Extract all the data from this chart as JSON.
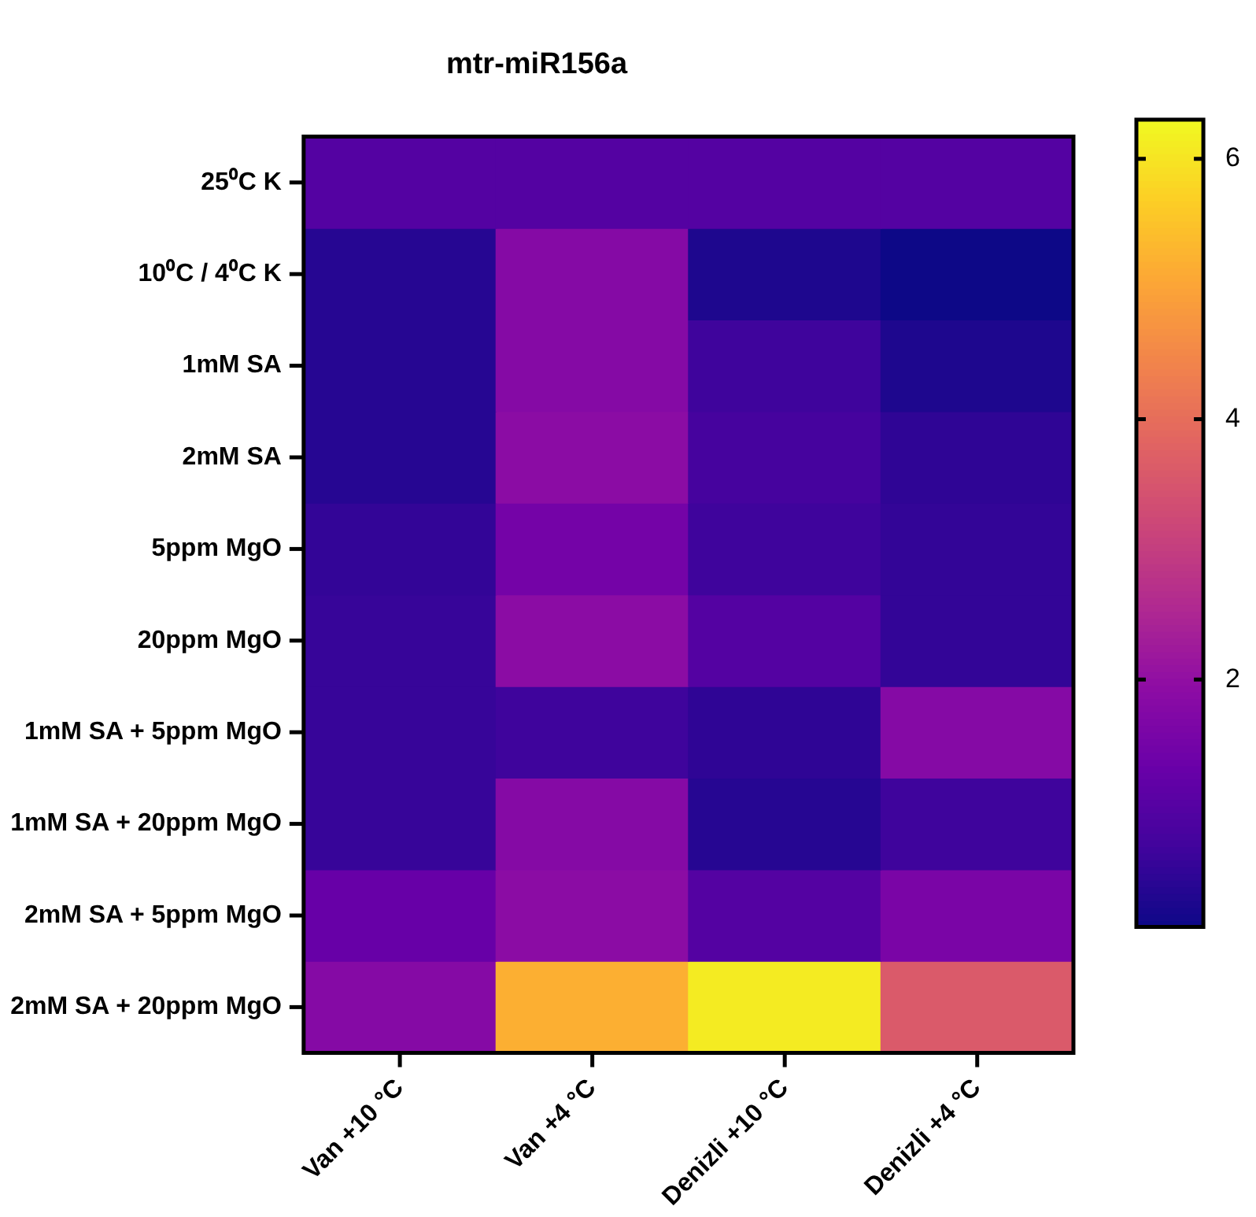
{
  "chart_data": {
    "type": "heatmap",
    "title": "mtr-miR156a",
    "categories": [
      "Van +10 °C",
      "Van +4 °C",
      "Denizli +10 °C",
      "Denizli +4 °C"
    ],
    "y_categories": [
      "25⁰C K",
      "10⁰C / 4⁰C K",
      "1mM SA",
      "2mM SA",
      "5ppm MgO",
      "20ppm MgO",
      "1mM SA + 5ppm MgO",
      "1mM SA + 20ppm MgO",
      "2mM SA + 5ppm MgO",
      "2mM SA + 20ppm MgO"
    ],
    "cells": [
      [
        1.0,
        1.0,
        1.0,
        1.0
      ],
      [
        0.4,
        1.8,
        0.3,
        0.1
      ],
      [
        0.4,
        1.8,
        0.7,
        0.3
      ],
      [
        0.4,
        1.9,
        0.8,
        0.5
      ],
      [
        0.55,
        1.5,
        0.7,
        0.55
      ],
      [
        0.6,
        1.9,
        1.0,
        0.55
      ],
      [
        0.6,
        0.7,
        0.5,
        1.8
      ],
      [
        0.6,
        1.8,
        0.4,
        0.7
      ],
      [
        1.3,
        1.9,
        1.0,
        1.6
      ],
      [
        1.8,
        5.2,
        6.1,
        3.6
      ]
    ],
    "clim": [
      0.1,
      6.3
    ],
    "cticks": [
      2,
      4,
      6
    ]
  }
}
